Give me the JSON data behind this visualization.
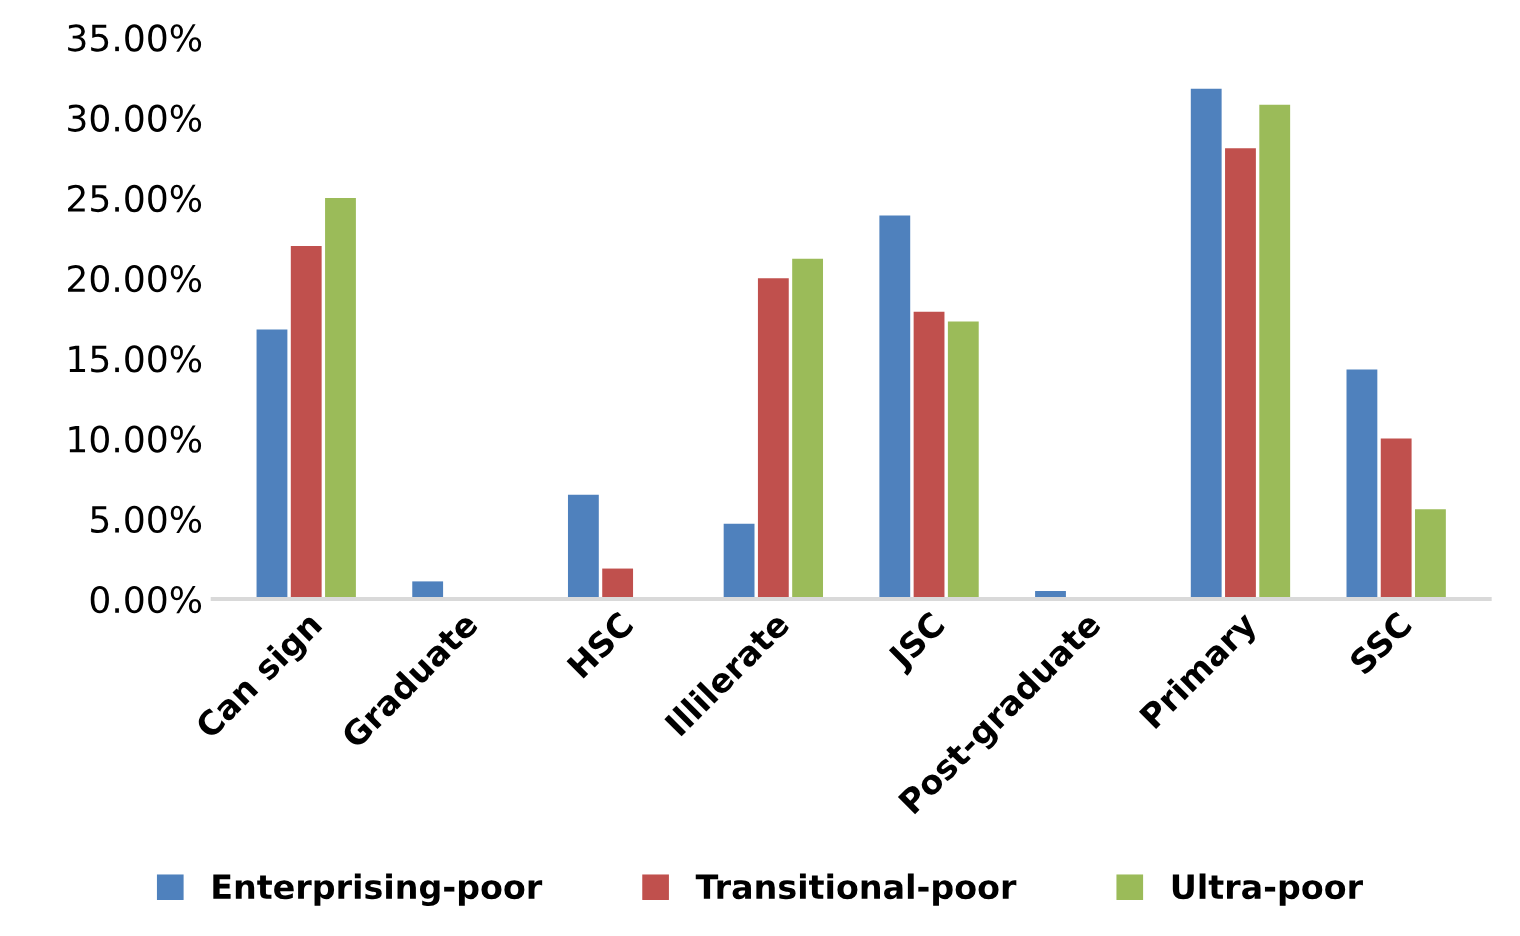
{
  "chart_data": {
    "type": "bar",
    "categories": [
      "Can sign",
      "Graduate",
      "HSC",
      "Illilerate",
      "JSC",
      "Post-graduate",
      "Primary",
      "SSC"
    ],
    "series": [
      {
        "name": "Enterprising-poor",
        "color": "#4f81bd",
        "values": [
          16.8,
          1.1,
          6.5,
          4.7,
          23.9,
          0.5,
          31.8,
          14.3
        ]
      },
      {
        "name": "Transitional-poor",
        "color": "#c0504d",
        "values": [
          22.0,
          0,
          1.9,
          20.0,
          17.9,
          0,
          28.1,
          10.0
        ]
      },
      {
        "name": "Ultra-poor",
        "color": "#9bbb59",
        "values": [
          25.0,
          0,
          0,
          21.2,
          17.3,
          0,
          30.8,
          5.6
        ]
      }
    ],
    "ylim": [
      0,
      35
    ],
    "yticks": [
      {
        "value": 0,
        "label": "0.00%"
      },
      {
        "value": 5,
        "label": "5.00%"
      },
      {
        "value": 10,
        "label": "10.00%"
      },
      {
        "value": 15,
        "label": "15.00%"
      },
      {
        "value": 20,
        "label": "20.00%"
      },
      {
        "value": 25,
        "label": "25.00%"
      },
      {
        "value": 30,
        "label": "30.00%"
      },
      {
        "value": 35,
        "label": "35.00%"
      }
    ],
    "grid": false,
    "legend": "bottom"
  }
}
